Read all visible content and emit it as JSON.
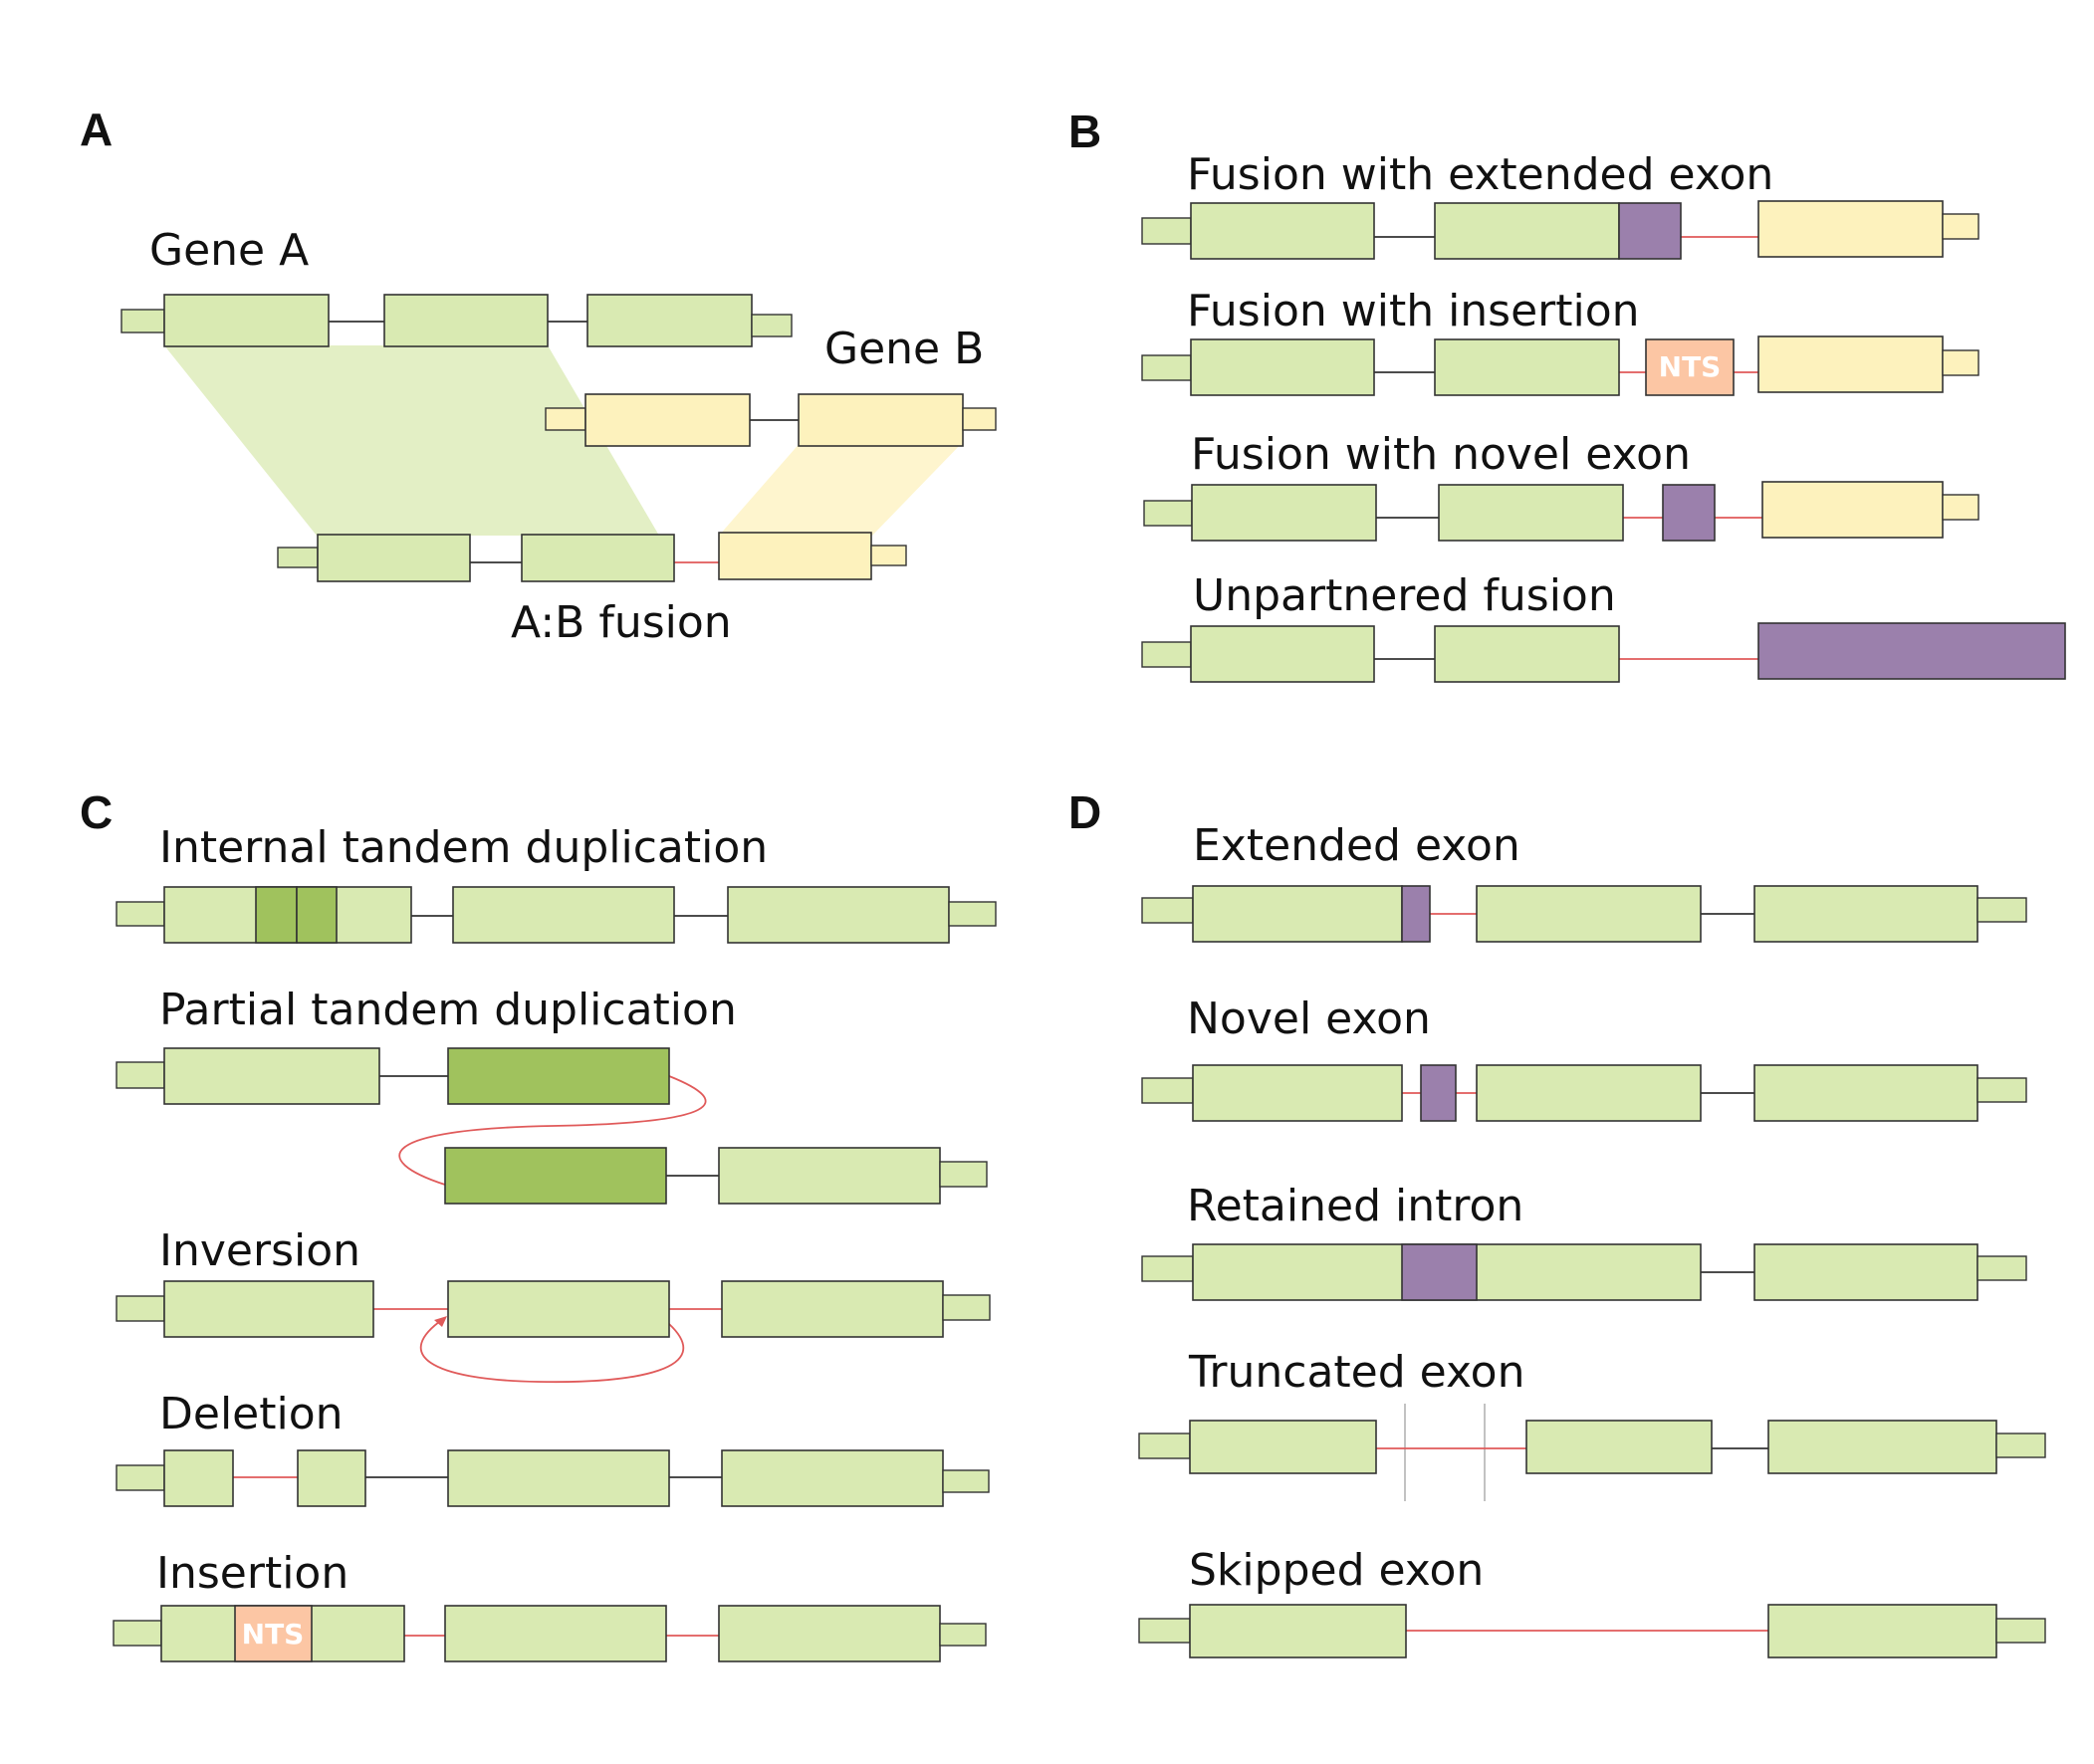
{
  "colors": {
    "gene_a": "#d9eab2",
    "gene_a_dup": "#a0c25d",
    "gene_b": "#fdf2bd",
    "novel": "#9b80ac",
    "nts": "#fcc6a4",
    "intron": "#333333",
    "novel_junction": "#e05a5a",
    "guide": "#bbbbbb"
  },
  "panels": {
    "a": {
      "letter": "A",
      "gene_a_label": "Gene A",
      "gene_b_label": "Gene B",
      "fusion_label": "A:B fusion"
    },
    "b": {
      "letter": "B",
      "rows": [
        {
          "label": "Fusion with extended exon"
        },
        {
          "label": "Fusion with insertion",
          "tag": "NTS"
        },
        {
          "label": "Fusion with novel exon"
        },
        {
          "label": "Unpartnered fusion"
        }
      ]
    },
    "c": {
      "letter": "C",
      "rows": [
        {
          "label": "Internal tandem duplication"
        },
        {
          "label": "Partial tandem duplication"
        },
        {
          "label": "Inversion"
        },
        {
          "label": "Deletion"
        },
        {
          "label": "Insertion",
          "tag": "NTS"
        }
      ]
    },
    "d": {
      "letter": "D",
      "rows": [
        {
          "label": "Extended exon"
        },
        {
          "label": "Novel exon"
        },
        {
          "label": "Retained intron"
        },
        {
          "label": "Truncated exon"
        },
        {
          "label": "Skipped exon"
        }
      ]
    }
  }
}
